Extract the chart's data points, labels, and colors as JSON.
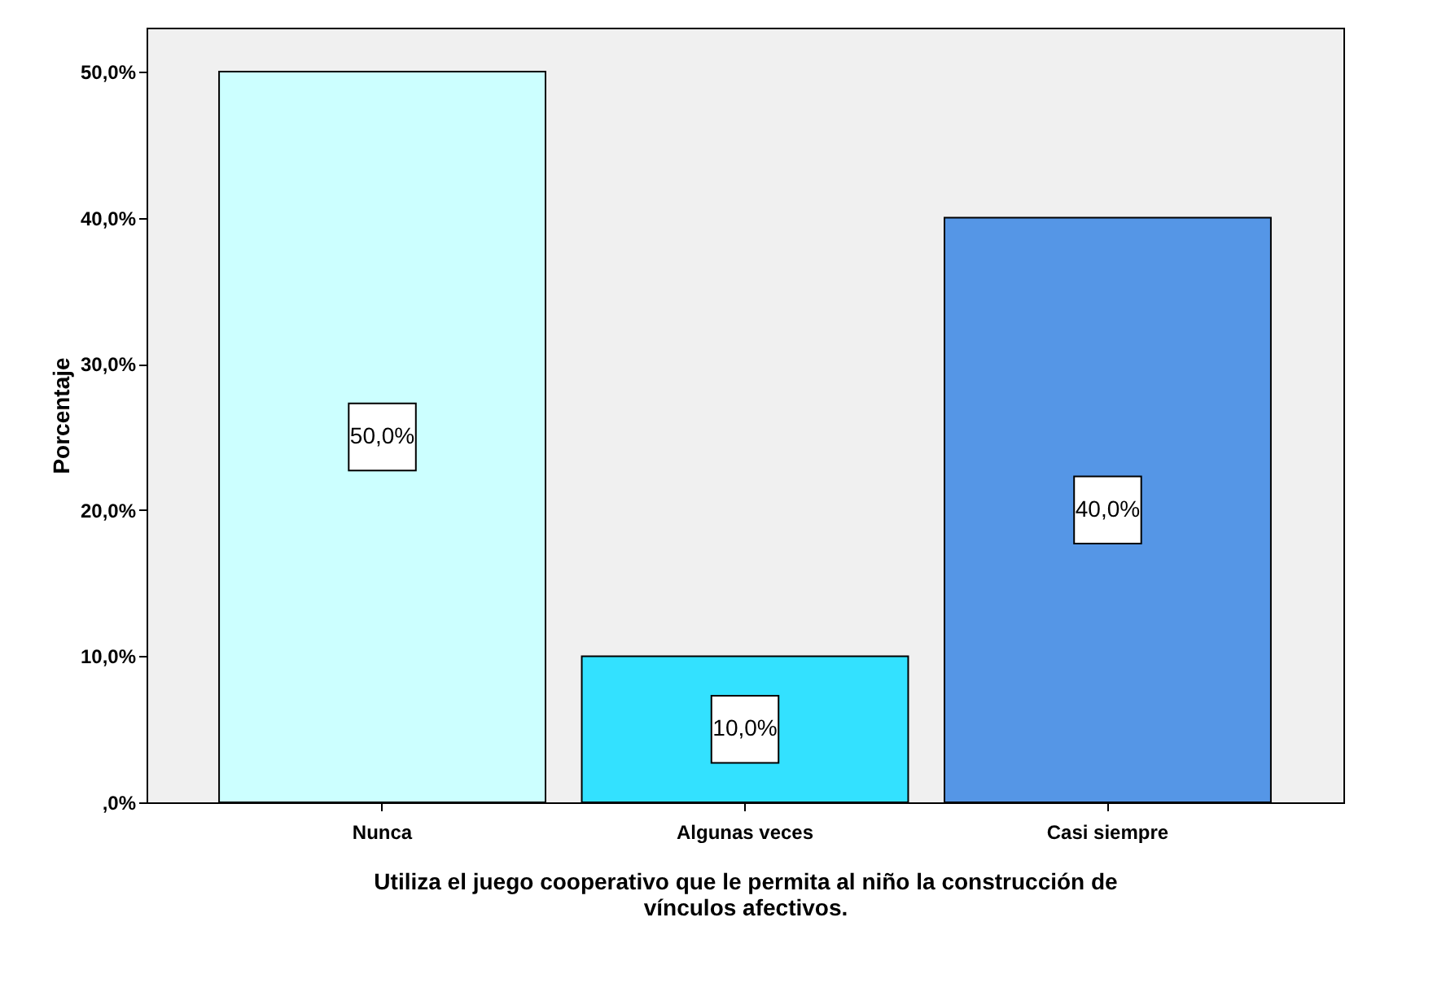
{
  "chart_data": {
    "type": "bar",
    "xlabel": "Utiliza el juego cooperativo que le permita al niño la construcción de vínculos afectivos.",
    "ylabel": "Porcentaje",
    "categories": [
      "Nunca",
      "Algunas veces",
      "Casi siempre"
    ],
    "values": [
      50,
      10,
      40
    ],
    "colors": [
      "#ccffff",
      "#33e1ff",
      "#5596e6"
    ],
    "value_labels": [
      "50,0%",
      "10,0%",
      "40,0%"
    ],
    "ylim": [
      0,
      53
    ],
    "yticks": [
      {
        "value": 0,
        "label": ",0%"
      },
      {
        "value": 10,
        "label": "10,0%"
      },
      {
        "value": 20,
        "label": "20,0%"
      },
      {
        "value": 30,
        "label": "30,0%"
      },
      {
        "value": 40,
        "label": "40,0%"
      },
      {
        "value": 50,
        "label": "50,0%"
      }
    ],
    "grid": false,
    "legend": false
  }
}
